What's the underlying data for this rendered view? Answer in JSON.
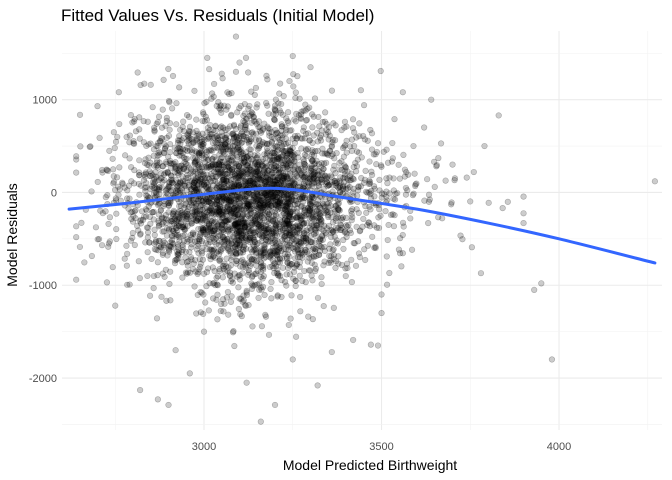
{
  "chart_data": {
    "type": "scatter",
    "title": "Fitted Values Vs. Residuals (Initial Model)",
    "xlabel": "Model Predicted Birthweight",
    "ylabel": "Model Residuals",
    "xlim": [
      2600,
      4290
    ],
    "ylim": [
      -2560,
      1740
    ],
    "x_ticks": [
      3000,
      3500,
      4000
    ],
    "x_tick_labels": [
      "3000",
      "3500",
      "4000"
    ],
    "y_ticks": [
      -2000,
      -1000,
      0,
      1000
    ],
    "y_tick_labels": [
      "-2000",
      "-1000",
      "0",
      "1000"
    ],
    "grid": true,
    "legend": "none",
    "point_color": "#000000",
    "point_alpha": 0.2,
    "n_points_approx": 4342,
    "points_note_text": "",
    "scatter_sample": [
      [
        2640,
        390
      ],
      [
        2700,
        930
      ],
      [
        2760,
        1080
      ],
      [
        2750,
        -1220
      ],
      [
        2820,
        -2130
      ],
      [
        2870,
        -2230
      ],
      [
        2900,
        -2290
      ],
      [
        2850,
        1160
      ],
      [
        3050,
        1280
      ],
      [
        3100,
        1400
      ],
      [
        3090,
        1300
      ],
      [
        3090,
        1680
      ],
      [
        3250,
        1470
      ],
      [
        3300,
        1350
      ],
      [
        3420,
        -1590
      ],
      [
        3470,
        -1640
      ],
      [
        3490,
        -1650
      ],
      [
        3500,
        -1300
      ],
      [
        3500,
        -1100
      ],
      [
        3560,
        1080
      ],
      [
        3590,
        500
      ],
      [
        3620,
        700
      ],
      [
        3640,
        1000
      ],
      [
        3660,
        370
      ],
      [
        3700,
        300
      ],
      [
        3740,
        160
      ],
      [
        3760,
        220
      ],
      [
        3780,
        -870
      ],
      [
        3790,
        500
      ],
      [
        3830,
        830
      ],
      [
        3900,
        -330
      ],
      [
        3930,
        -1050
      ],
      [
        3950,
        -980
      ],
      [
        3980,
        -1800
      ],
      [
        4270,
        120
      ],
      [
        3160,
        -2470
      ],
      [
        3200,
        -2290
      ],
      [
        2960,
        -1950
      ],
      [
        2920,
        -1700
      ],
      [
        3000,
        -1500
      ],
      [
        3320,
        -2080
      ],
      [
        3360,
        -1720
      ],
      [
        3250,
        -1800
      ],
      [
        3120,
        -2050
      ]
    ],
    "smooth_line": {
      "method": "loess",
      "color": "#3366ff",
      "x": [
        2620,
        2800,
        3000,
        3150,
        3250,
        3400,
        3600,
        3800,
        4000,
        4270
      ],
      "y": [
        -180,
        -110,
        -20,
        40,
        30,
        -60,
        -180,
        -330,
        -500,
        -760
      ]
    }
  }
}
